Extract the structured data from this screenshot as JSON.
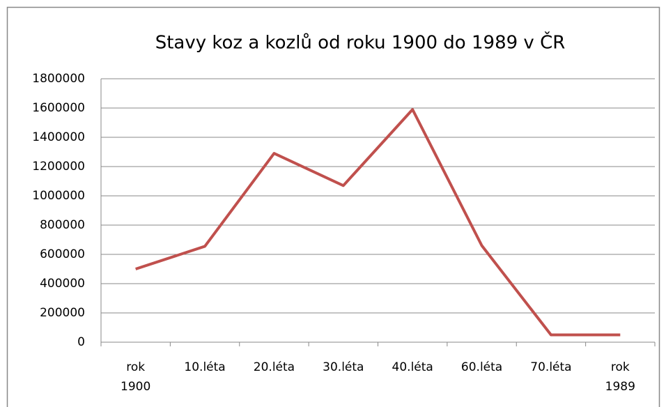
{
  "chart_data": {
    "type": "line",
    "title": "Stavy koz a kozlů od roku 1900 do 1989 v ČR",
    "categories": [
      "rok 1900",
      "10.léta",
      "20.léta",
      "30.léta",
      "40.léta",
      "60.léta",
      "70.léta",
      "rok 1989"
    ],
    "values": [
      500000,
      655000,
      1290000,
      1070000,
      1590000,
      660000,
      50000,
      50000
    ],
    "color": "#c0504d",
    "ylim": [
      0,
      1800000
    ],
    "yticks": [
      0,
      200000,
      400000,
      600000,
      800000,
      1000000,
      1200000,
      1400000,
      1600000,
      1800000
    ],
    "grid": true
  }
}
